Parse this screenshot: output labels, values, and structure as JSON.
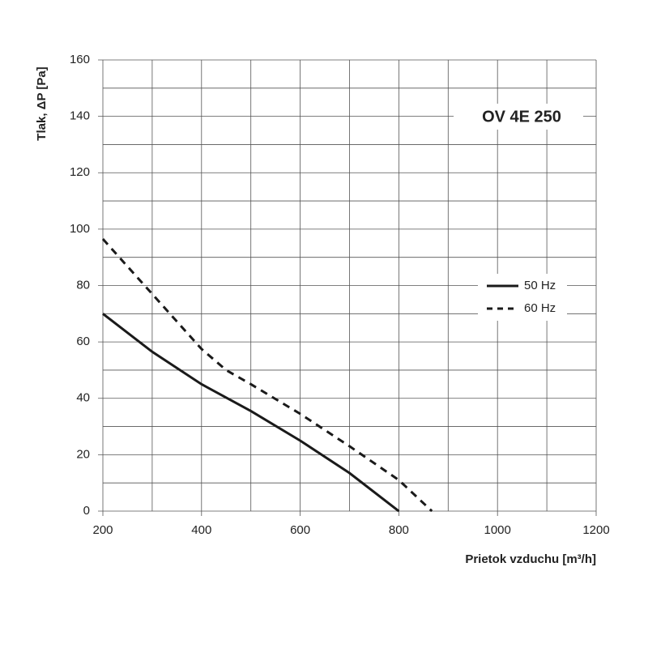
{
  "chart_data": {
    "type": "line",
    "title": "OV 4E 250",
    "xlabel": "Prietok vzduchu  [m³/h]",
    "ylabel": "Tlak, ΔP [Pa]",
    "xlim": [
      200,
      1200
    ],
    "ylim": [
      0,
      160
    ],
    "xticks": [
      200,
      400,
      600,
      800,
      1000,
      1200
    ],
    "yticks": [
      0,
      20,
      40,
      60,
      80,
      100,
      120,
      140,
      160
    ],
    "xminorticks": [
      300,
      500,
      700,
      900,
      1100
    ],
    "yminorticks": [
      10,
      30,
      50,
      70,
      90,
      110,
      130,
      150
    ],
    "grid": true,
    "legend": "right",
    "series": [
      {
        "name": "50 Hz",
        "color": "#1a1a1a",
        "dash": false,
        "x": [
          200,
          300,
          400,
          500,
          600,
          700,
          800
        ],
        "values": [
          70,
          56.5,
          45,
          35.5,
          25,
          13.5,
          0
        ]
      },
      {
        "name": "60 Hz",
        "color": "#1a1a1a",
        "dash": true,
        "x": [
          200,
          300,
          400,
          450,
          500,
          600,
          700,
          800,
          867
        ],
        "values": [
          96.5,
          77,
          57.5,
          50,
          45,
          34.5,
          23,
          11,
          0
        ]
      }
    ]
  }
}
